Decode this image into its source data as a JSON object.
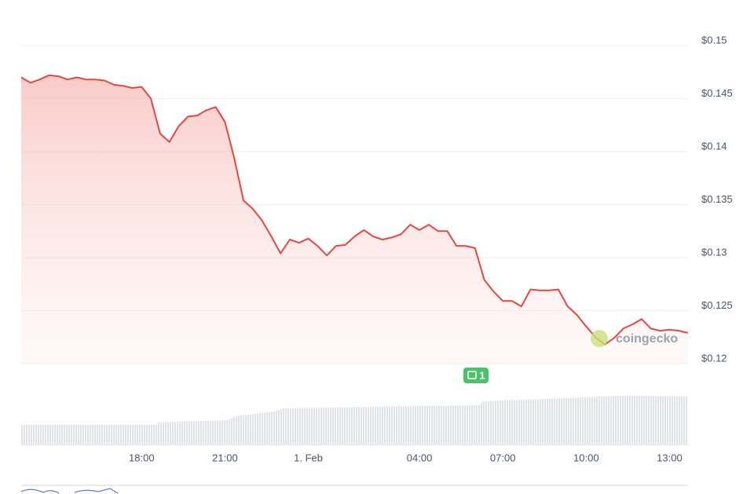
{
  "chart_data": {
    "type": "line",
    "categories": [
      null,
      null,
      null,
      null,
      null,
      null,
      null,
      null,
      null,
      null,
      null,
      null,
      null,
      "18:00",
      null,
      null,
      null,
      null,
      null,
      null,
      null,
      null,
      "21:00",
      null,
      null,
      null,
      null,
      null,
      null,
      null,
      null,
      "1. Feb",
      null,
      null,
      null,
      null,
      null,
      null,
      null,
      null,
      null,
      null,
      null,
      "04:00",
      null,
      null,
      null,
      null,
      null,
      null,
      null,
      null,
      "07:00",
      null,
      null,
      null,
      null,
      null,
      null,
      null,
      null,
      "10:00",
      null,
      null,
      null,
      null,
      null,
      null,
      null,
      null,
      "13:00",
      null,
      null
    ],
    "values": [
      0.147,
      0.1465,
      0.1468,
      0.1472,
      0.1471,
      0.1468,
      0.147,
      0.1468,
      0.1468,
      0.1467,
      0.1463,
      0.1462,
      0.146,
      0.1461,
      0.145,
      0.1417,
      0.1409,
      0.1424,
      0.1433,
      0.1434,
      0.1439,
      0.1442,
      0.1428,
      0.1394,
      0.1354,
      0.1346,
      0.1335,
      0.132,
      0.1304,
      0.1317,
      0.1314,
      0.1318,
      0.1311,
      0.1302,
      0.1311,
      0.1312,
      0.132,
      0.1326,
      0.132,
      0.1317,
      0.1319,
      0.1322,
      0.1331,
      0.1326,
      0.1331,
      0.1325,
      0.1325,
      0.1311,
      0.1311,
      0.1309,
      0.1279,
      0.1268,
      0.1259,
      0.1259,
      0.1254,
      0.127,
      0.1269,
      0.1269,
      0.127,
      0.1254,
      0.1246,
      0.1235,
      0.1225,
      0.1218,
      0.1224,
      0.1233,
      0.1237,
      0.1242,
      0.1233,
      0.1231,
      0.1232,
      0.1231,
      0.1229
    ],
    "color": "#e5483f",
    "ylim": [
      0.12,
      0.15
    ],
    "yticks": [
      {
        "value": 0.12,
        "label": "$0.12"
      },
      {
        "value": 0.125,
        "label": "$0.125"
      },
      {
        "value": 0.13,
        "label": "$0.13"
      },
      {
        "value": 0.135,
        "label": "$0.135"
      },
      {
        "value": 0.14,
        "label": "$0.14"
      },
      {
        "value": 0.145,
        "label": "$0.145"
      },
      {
        "value": 0.15,
        "label": "$0.15"
      }
    ],
    "grid": true,
    "news_badge": "1",
    "watermark": "coingecko"
  }
}
